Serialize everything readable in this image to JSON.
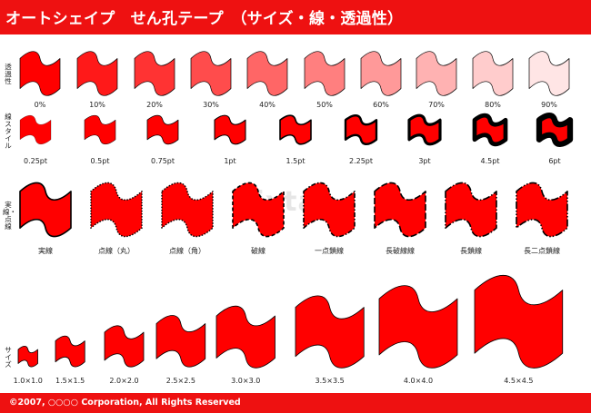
{
  "header": {
    "title": "オートシェイプ　せん孔テープ　（サイズ・線・透過性）"
  },
  "footer": {
    "copyright": "©2007, ○○○○ Corporation, All Rights Reserved"
  },
  "colors": {
    "accent": "#ee1111",
    "fill": "#ff0000",
    "stroke": "#000000"
  },
  "watermark": "pixta",
  "row_labels": {
    "transparency": "透過性",
    "line_style": "線スタイル",
    "dash": "実線・点線",
    "size": "サイズ"
  },
  "transparency": [
    {
      "label": "0%",
      "value": 0
    },
    {
      "label": "10%",
      "value": 10
    },
    {
      "label": "20%",
      "value": 20
    },
    {
      "label": "30%",
      "value": 30
    },
    {
      "label": "40%",
      "value": 40
    },
    {
      "label": "50%",
      "value": 50
    },
    {
      "label": "60%",
      "value": 60
    },
    {
      "label": "70%",
      "value": 70
    },
    {
      "label": "80%",
      "value": 80
    },
    {
      "label": "90%",
      "value": 90
    }
  ],
  "line_widths": [
    {
      "label": "0.25pt",
      "value": 0.25
    },
    {
      "label": "0.5pt",
      "value": 0.5
    },
    {
      "label": "0.75pt",
      "value": 0.75
    },
    {
      "label": "1pt",
      "value": 1
    },
    {
      "label": "1.5pt",
      "value": 1.5
    },
    {
      "label": "2.25pt",
      "value": 2.25
    },
    {
      "label": "3pt",
      "value": 3
    },
    {
      "label": "4.5pt",
      "value": 4.5
    },
    {
      "label": "6pt",
      "value": 6
    }
  ],
  "dash_styles": [
    {
      "label": "実線",
      "style": "solid"
    },
    {
      "label": "点線（丸）",
      "style": "round-dot"
    },
    {
      "label": "点線（角）",
      "style": "square-dot"
    },
    {
      "label": "破線",
      "style": "dash"
    },
    {
      "label": "一点鎖線",
      "style": "dash-dot"
    },
    {
      "label": "長破線線",
      "style": "long-dash"
    },
    {
      "label": "長鎖線",
      "style": "long-dash-dot"
    },
    {
      "label": "長二点鎖線",
      "style": "long-dash-dot-dot"
    }
  ],
  "sizes": [
    {
      "label": "1.0×1.0",
      "value": 1.0
    },
    {
      "label": "1.5×1.5",
      "value": 1.5
    },
    {
      "label": "2.0×2.0",
      "value": 2.0
    },
    {
      "label": "2.5×2.5",
      "value": 2.5
    },
    {
      "label": "3.0×3.0",
      "value": 3.0
    },
    {
      "label": "3.5×3.5",
      "value": 3.5
    },
    {
      "label": "4.0×4.0",
      "value": 4.0
    },
    {
      "label": "4.5×4.5",
      "value": 4.5
    }
  ]
}
